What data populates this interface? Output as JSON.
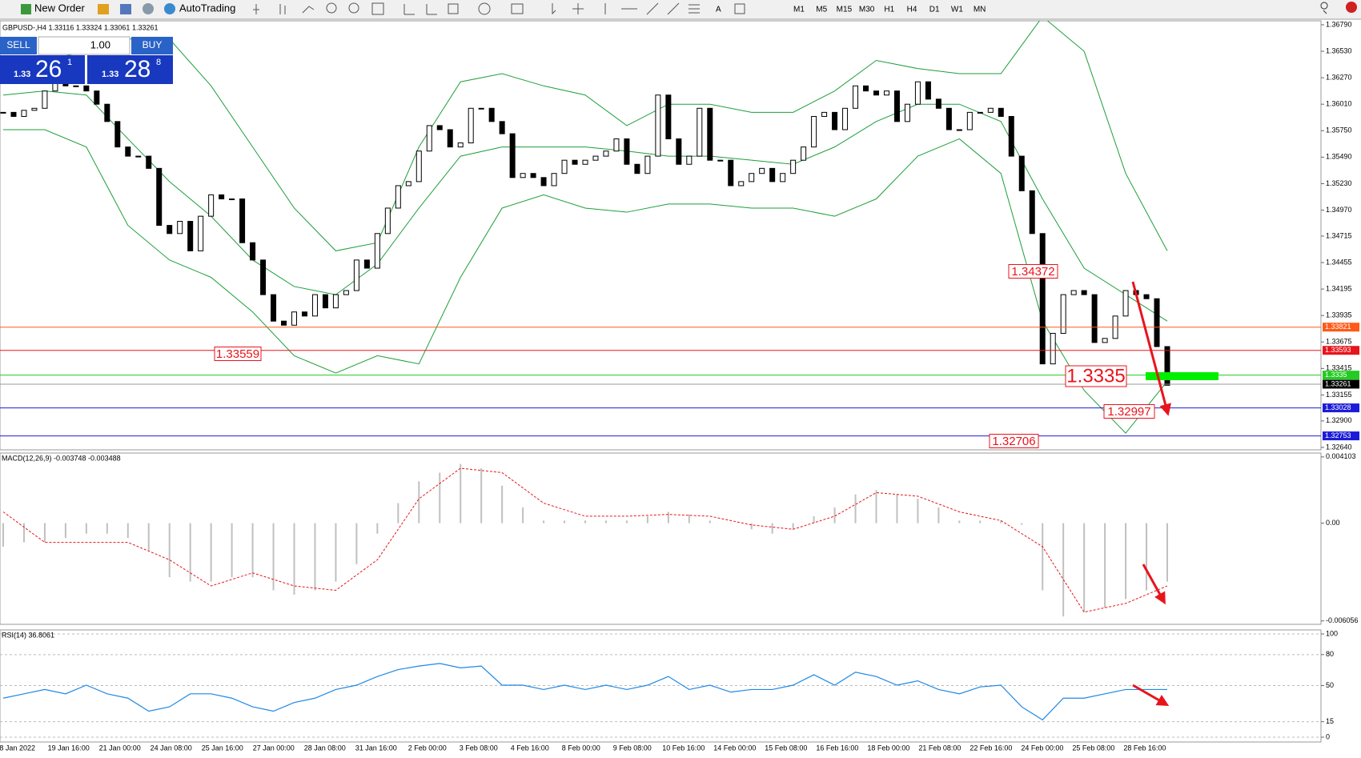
{
  "toolbar": {
    "new_order": "New Order",
    "auto_trading": "AutoTrading",
    "timeframes": [
      "M1",
      "M5",
      "M15",
      "M30",
      "H1",
      "H4",
      "D1",
      "W1",
      "MN"
    ]
  },
  "trade_panel": {
    "sell": "SELL",
    "lot": "1.00",
    "buy": "BUY",
    "sell_price": {
      "big": "1.33",
      "main": "26",
      "small": "1"
    },
    "buy_price": {
      "big": "1.33",
      "main": "28",
      "small": "8"
    }
  },
  "chart": {
    "header": "GBPUSD-,H4  1.33116 1.33324 1.33061 1.33261",
    "ylim": [
      1.32616,
      1.36829
    ],
    "yticks": [
      {
        "value": 1.3679,
        "label": "1.36790"
      },
      {
        "value": 1.3653,
        "label": "1.36530"
      },
      {
        "value": 1.3627,
        "label": "1.36270"
      },
      {
        "value": 1.3601,
        "label": "1.36010"
      },
      {
        "value": 1.3575,
        "label": "1.35750"
      },
      {
        "value": 1.3549,
        "label": "1.35490"
      },
      {
        "value": 1.3523,
        "label": "1.35230"
      },
      {
        "value": 1.3497,
        "label": "1.34970"
      },
      1.34715,
      1.34455,
      1.34195,
      1.33935,
      1.33675,
      1.33415,
      1.33155,
      {
        "value": 1.329,
        "label": "1.32900"
      },
      {
        "value": 1.3264,
        "label": "1.32640"
      }
    ],
    "levels": [
      {
        "price": 1.33821,
        "color": "#ff5a1a"
      },
      {
        "price": 1.33593,
        "color": "#e8141c"
      },
      {
        "price": 1.3335,
        "color": "#22cc22"
      },
      {
        "price": 1.33261,
        "color": "#999999"
      },
      {
        "price": 1.33028,
        "color": "#1c1cd8"
      },
      {
        "price": 1.32753,
        "color": "#1c1cd8"
      }
    ],
    "annotations": [
      1.34372,
      1.33559,
      1.3335,
      1.32997,
      1.32706
    ],
    "closes": [
      1.3593,
      1.3589,
      1.3595,
      1.3597,
      1.3614,
      1.3623,
      1.3619,
      1.3619,
      1.3614,
      1.3601,
      1.3584,
      1.3559,
      1.355,
      1.355,
      1.3538,
      1.3482,
      1.3474,
      1.3486,
      1.3457,
      1.3491,
      1.3512,
      1.3508,
      1.3508,
      1.3465,
      1.3448,
      1.3414,
      1.3388,
      1.3384,
      1.3397,
      1.3393,
      1.3414,
      1.3401,
      1.3414,
      1.3418,
      1.3448,
      1.344,
      1.3474,
      1.3499,
      1.3521,
      1.3525,
      1.3555,
      1.358,
      1.3576,
      1.3559,
      1.3563,
      1.3597,
      1.3597,
      1.3584,
      1.3572,
      1.3529,
      1.3533,
      1.3529,
      1.3521,
      1.3533,
      1.3546,
      1.3542,
      1.3546,
      1.355,
      1.3555,
      1.3567,
      1.3542,
      1.3533,
      1.355,
      1.361,
      1.3567,
      1.3542,
      1.355,
      1.3597,
      1.3546,
      1.3546,
      1.3521,
      1.3525,
      1.3533,
      1.3538,
      1.3525,
      1.3533,
      1.3546,
      1.3559,
      1.3589,
      1.3593,
      1.3576,
      1.3597,
      1.3619,
      1.3614,
      1.361,
      1.3614,
      1.3584,
      1.3601,
      1.3623,
      1.3606,
      1.3597,
      1.3576,
      1.3576,
      1.3593,
      1.3593,
      1.3597,
      1.3589,
      1.355,
      1.3516,
      1.3474,
      1.3346,
      1.3376,
      1.3414,
      1.3418,
      1.3414,
      1.3367,
      1.3371,
      1.3393,
      1.3418,
      1.3414,
      1.341,
      1.3363,
      1.3325
    ],
    "bands": {
      "upper": [
        1.3644,
        1.3644,
        1.3653,
        1.3665,
        1.3665,
        1.3619,
        1.3559,
        1.3499,
        1.3457,
        1.3465,
        1.3559,
        1.3623,
        1.3631,
        1.3619,
        1.361,
        1.358,
        1.3601,
        1.3601,
        1.3593,
        1.3593,
        1.3614,
        1.3644,
        1.3636,
        1.3631,
        1.3631,
        1.3687,
        1.3653,
        1.3533,
        1.3457
      ],
      "middle": [
        1.361,
        1.3614,
        1.361,
        1.3567,
        1.3525,
        1.3491,
        1.3448,
        1.3422,
        1.3414,
        1.3444,
        1.3499,
        1.355,
        1.3559,
        1.3559,
        1.3559,
        1.3555,
        1.355,
        1.355,
        1.3546,
        1.3542,
        1.3559,
        1.3584,
        1.3601,
        1.3601,
        1.3584,
        1.3508,
        1.344,
        1.3414,
        1.3388
      ],
      "lower": [
        1.3576,
        1.3576,
        1.3559,
        1.3482,
        1.3448,
        1.3431,
        1.3397,
        1.3354,
        1.3337,
        1.3354,
        1.3346,
        1.3431,
        1.3499,
        1.3512,
        1.3499,
        1.3495,
        1.3503,
        1.3503,
        1.3499,
        1.3499,
        1.3491,
        1.3508,
        1.355,
        1.3567,
        1.3533,
        1.3388,
        1.332,
        1.3278,
        1.3329
      ],
      "color": "#1e9e3a"
    }
  },
  "macd": {
    "label": "MACD(12,26,9) -0.003748 -0.003488",
    "ylim": [
      -0.006267,
      0.004343
    ],
    "yticks": [
      0.004103,
      {
        "value": 0,
        "label": "0.00"
      },
      -0.006056
    ],
    "histogram": [
      -0.00146,
      -0.00119,
      -0.00119,
      -0.00092,
      -0.00065,
      -0.00065,
      -0.00092,
      -0.00173,
      -0.00335,
      -0.00362,
      -0.00362,
      -0.00335,
      -0.00335,
      -0.00416,
      -0.00443,
      -0.00416,
      -0.00362,
      -0.00254,
      -0.00065,
      0.00124,
      0.00259,
      0.00313,
      0.00367,
      0.0034,
      0.00232,
      0.00097,
      0.00016,
      0.00016,
      0.00016,
      0.00016,
      0.00016,
      0.00043,
      0.0007,
      0.00054,
      0.00016,
      0,
      -0.00038,
      -0.00065,
      -0.00038,
      0.00043,
      0.00097,
      0.00178,
      0.00205,
      0.00178,
      0.00151,
      0.00097,
      0.00016,
      0.00016,
      0.00016,
      -0.00011,
      -0.00416,
      -0.00578,
      -0.00551,
      -0.00524,
      -0.0047,
      -0.00416,
      -0.00362
    ],
    "signal": [
      0.0007,
      -0.00119,
      -0.00119,
      -0.00119,
      -0.00227,
      -0.00389,
      -0.00308,
      -0.00389,
      -0.00416,
      -0.00227,
      0.00151,
      0.0034,
      0.00313,
      0.00124,
      0.00043,
      0.00043,
      0.00054,
      0.00043,
      -0.00011,
      -0.00038,
      0.00043,
      0.00189,
      0.00167,
      0.0007,
      0.00016,
      -0.00146,
      -0.00551,
      -0.00497,
      -0.00389
    ]
  },
  "rsi": {
    "label": "RSI(14) 36.8061",
    "ylim": [
      -4.65,
      103.9
    ],
    "yticks": [
      100,
      80,
      50,
      15,
      0
    ],
    "values": [
      37.8,
      42,
      46.2,
      42,
      50.4,
      42,
      37.8,
      25.2,
      29.4,
      42,
      42,
      37.8,
      29.4,
      25.2,
      33.6,
      37.8,
      46.2,
      50.4,
      58.8,
      65.5,
      68.9,
      71.4,
      67.2,
      68.9,
      50.4,
      50.4,
      46.2,
      50.4,
      46.2,
      50.4,
      46.2,
      50.4,
      58.8,
      46.2,
      50.4,
      43.7,
      46.2,
      46.2,
      50.4,
      60.5,
      50.4,
      63,
      58.8,
      50.4,
      54.6,
      46.2,
      42,
      48.7,
      50.4,
      29.4,
      16.8,
      37.8,
      37.8,
      42,
      46.2,
      46.2,
      46.2
    ]
  },
  "time_labels": [
    "8 Jan 2022",
    "19 Jan 16:00",
    "21 Jan 00:00",
    "24 Jan 08:00",
    "25 Jan 16:00",
    "27 Jan 00:00",
    "28 Jan 08:00",
    "31 Jan 16:00",
    "2 Feb 00:00",
    "3 Feb 08:00",
    "4 Feb 16:00",
    "8 Feb 00:00",
    "9 Feb 08:00",
    "10 Feb 16:00",
    "14 Feb 00:00",
    "15 Feb 08:00",
    "16 Feb 16:00",
    "18 Feb 00:00",
    "21 Feb 08:00",
    "22 Feb 16:00",
    "24 Feb 00:00",
    "25 Feb 08:00",
    "28 Feb 16:00"
  ]
}
